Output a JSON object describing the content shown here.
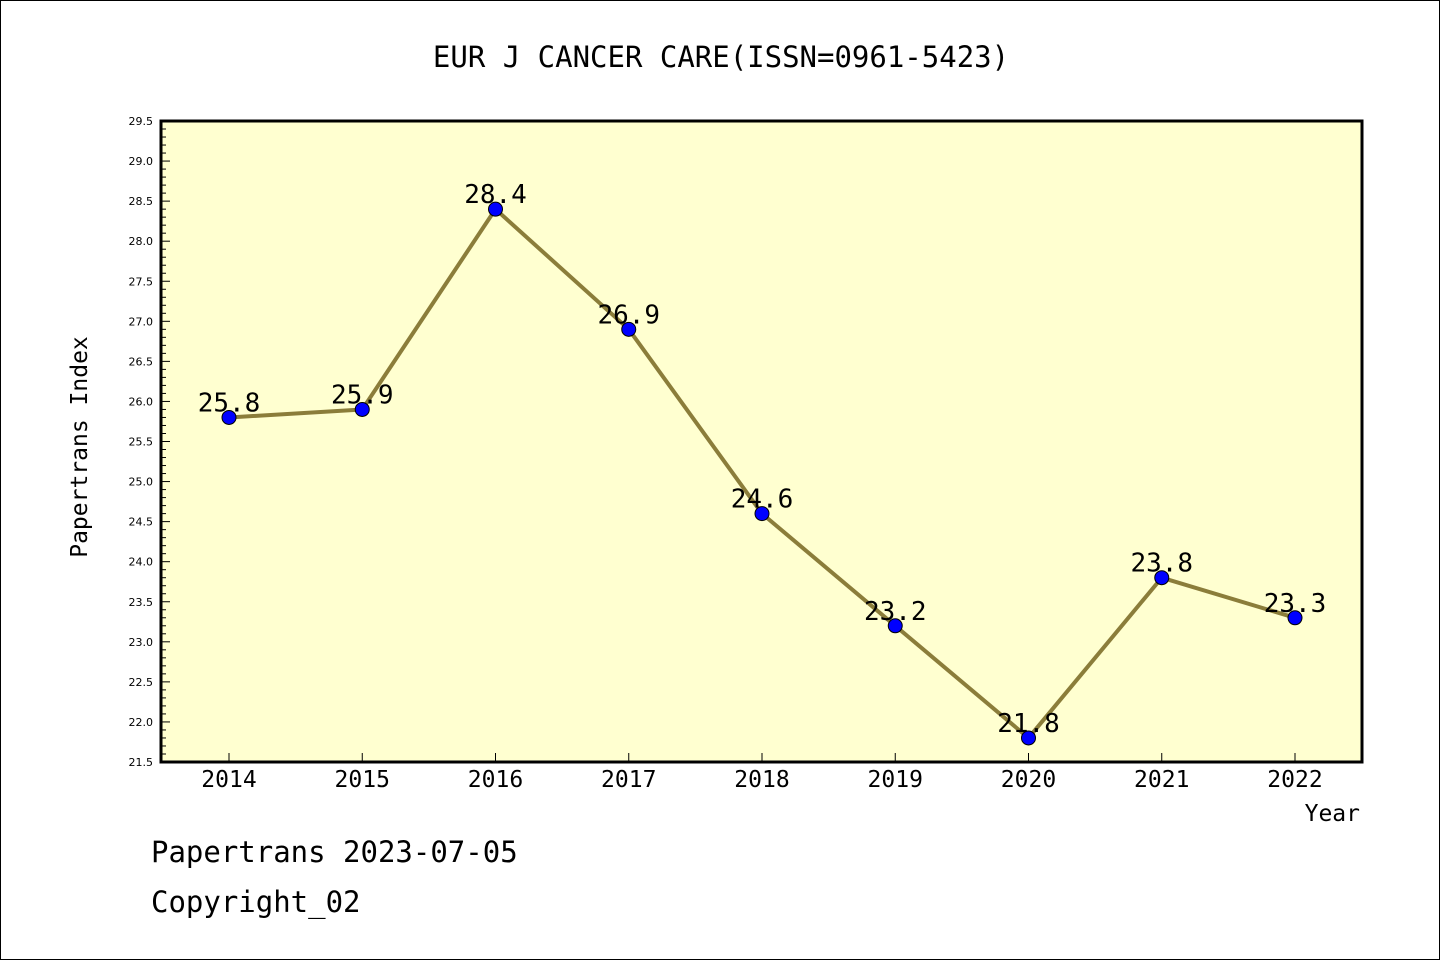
{
  "chart_data": {
    "type": "line",
    "title": "EUR J CANCER CARE(ISSN=0961-5423)",
    "xlabel": "Year",
    "ylabel": "Papertrans Index",
    "categories": [
      "2014",
      "2015",
      "2016",
      "2017",
      "2018",
      "2019",
      "2020",
      "2021",
      "2022"
    ],
    "series": [
      {
        "values": [
          25.8,
          25.9,
          28.4,
          26.9,
          24.6,
          23.2,
          21.8,
          23.8,
          23.3
        ],
        "data_labels": [
          "25.8",
          "25.9",
          "28.4",
          "26.9",
          "24.6",
          "23.2",
          "21.8",
          "23.8",
          "23.3"
        ],
        "line_color": "#8b7d3a",
        "marker_color": "#0000ff"
      }
    ],
    "ylim": [
      21.5,
      29.5
    ],
    "ytick_labels": [
      "21.5",
      "22.0",
      "22.5",
      "23.0",
      "23.5",
      "24.0",
      "24.5",
      "25.0",
      "25.5",
      "26.0",
      "26.5",
      "27.0",
      "27.5",
      "28.0",
      "28.5",
      "29.0",
      "29.5"
    ],
    "plot_background": "#ffffd0",
    "grid": false
  },
  "footer": {
    "line1": "Papertrans 2023-07-05",
    "line2": "Copyright_02"
  }
}
